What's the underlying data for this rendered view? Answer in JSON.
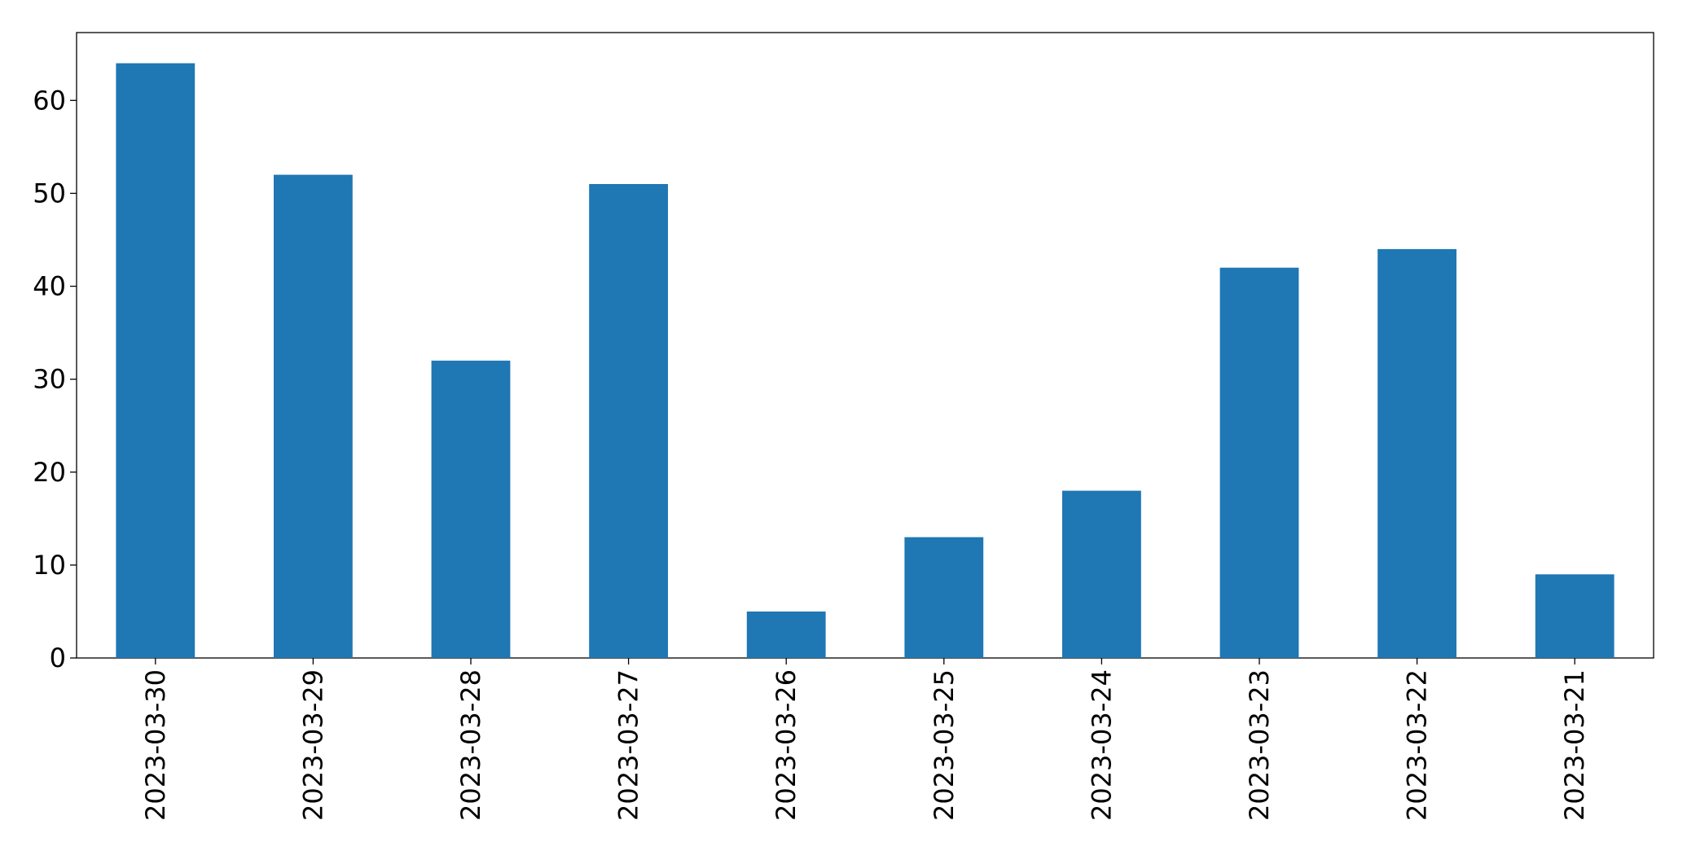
{
  "chart_data": {
    "type": "bar",
    "categories": [
      "2023-03-30",
      "2023-03-29",
      "2023-03-28",
      "2023-03-27",
      "2023-03-26",
      "2023-03-25",
      "2023-03-24",
      "2023-03-23",
      "2023-03-22",
      "2023-03-21"
    ],
    "values": [
      64,
      52,
      32,
      51,
      5,
      13,
      18,
      42,
      44,
      9
    ],
    "color": "#1f77b4",
    "ylim": [
      0,
      67.3
    ],
    "yticks": [
      0,
      10,
      20,
      30,
      40,
      50,
      60
    ],
    "grid": false
  }
}
